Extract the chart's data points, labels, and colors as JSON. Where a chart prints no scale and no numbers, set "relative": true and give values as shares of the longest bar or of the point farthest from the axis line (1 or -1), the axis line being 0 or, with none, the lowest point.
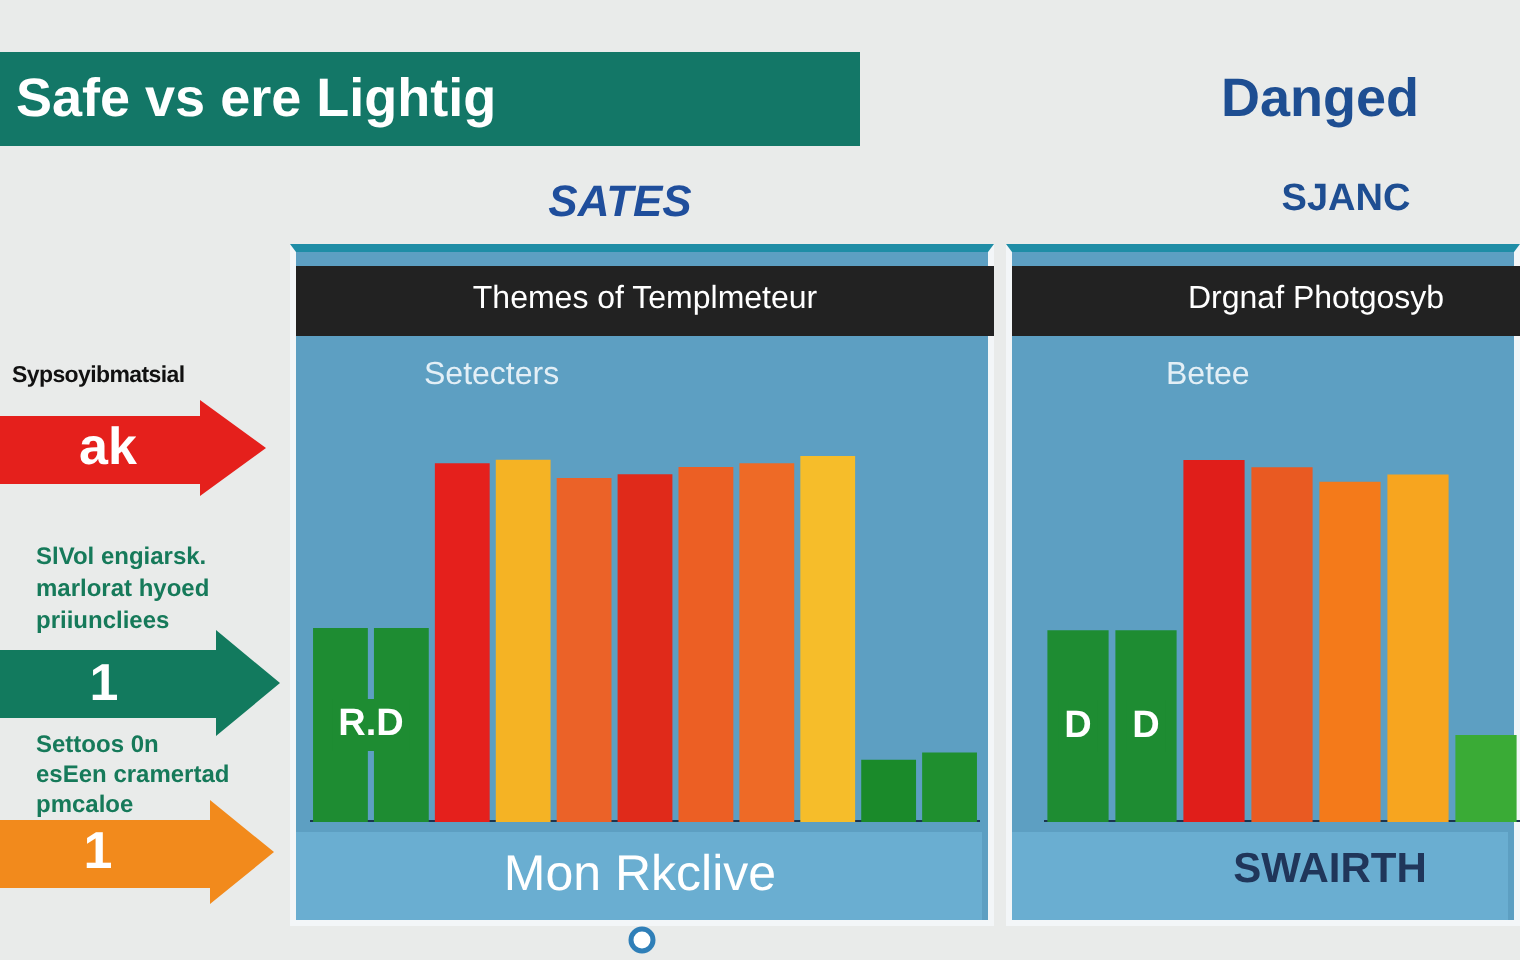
{
  "chart_data": [
    {
      "type": "other",
      "title": "Safe vs ere Lightig",
      "annotations": [
        "Sypsoyibmatsial",
        "ak",
        "SlVol engiarsk.\nmarlorat hyoed\npriiuncliees",
        "1",
        "Settoos 0n\nesEen cramertad\npmcaloe",
        "1"
      ]
    },
    {
      "type": "bar",
      "title": "SATES",
      "xlabel": "Mon Rkclive",
      "annotations": [
        "Themes of Templmeteur",
        "Setecters",
        "R.D"
      ],
      "categories": [
        null,
        null,
        null,
        null,
        null,
        null,
        null,
        null,
        null,
        null,
        null
      ],
      "values": [
        0.53,
        0.53,
        0.98,
        0.99,
        0.94,
        0.95,
        0.97,
        0.98,
        1,
        0.17,
        0.19
      ],
      "colors": [
        "#1e8c32",
        "#1e8c32",
        "#e5201c",
        "#f5b324",
        "#eb6228",
        "#e02a1a",
        "#ec5f24",
        "#ee6a26",
        "#f6bd2a",
        "#1a8a2a",
        "#1f8f2f"
      ],
      "relative": true
    },
    {
      "type": "bar",
      "title": "Danged",
      "subtitle": "SJANC",
      "xlabel": "SWAIRTH",
      "annotations": [
        "Drgnaf Photgosyb",
        "Betee",
        "D",
        "D"
      ],
      "categories": [
        null,
        null,
        null,
        null,
        null,
        null,
        null
      ],
      "values": [
        0.53,
        0.53,
        1,
        0.98,
        0.94,
        0.96,
        0.24
      ],
      "colors": [
        "#1e8c32",
        "#1e8c32",
        "#e01e1a",
        "#e95a22",
        "#f47a1a",
        "#f7a51f",
        "#3aab36"
      ],
      "relative": true
    }
  ]
}
